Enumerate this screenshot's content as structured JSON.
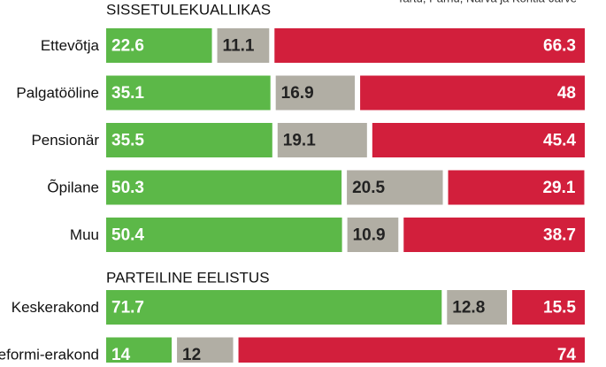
{
  "chart_data": [
    {
      "type": "bar",
      "title": "SISSETULEKUALLIKAS",
      "subtitle": "Tartu, Pärnu, Narva ja Kohtla-Järve",
      "categories": [
        "Ettevõtja",
        "Palgatööline",
        "Pensionär",
        "Õpilane",
        "Muu"
      ],
      "series": [
        {
          "color": "#5cb848",
          "values": [
            22.6,
            35.1,
            35.5,
            50.3,
            50.4
          ]
        },
        {
          "color": "#b1aea4",
          "values": [
            11.1,
            16.9,
            19.1,
            20.5,
            10.9
          ]
        },
        {
          "color": "#d21f3c",
          "values": [
            66.3,
            48,
            45.4,
            29.1,
            38.7
          ]
        }
      ],
      "xlim": [
        0,
        100
      ]
    },
    {
      "type": "bar",
      "title": "PARTEILINE EELISTUS",
      "categories": [
        "Keskerakond",
        "Reformi-erakond"
      ],
      "series": [
        {
          "color": "#5cb848",
          "values": [
            71.7,
            14
          ]
        },
        {
          "color": "#b1aea4",
          "values": [
            12.8,
            12
          ]
        },
        {
          "color": "#d21f3c",
          "values": [
            15.5,
            74
          ]
        }
      ],
      "xlim": [
        0,
        100
      ]
    }
  ]
}
